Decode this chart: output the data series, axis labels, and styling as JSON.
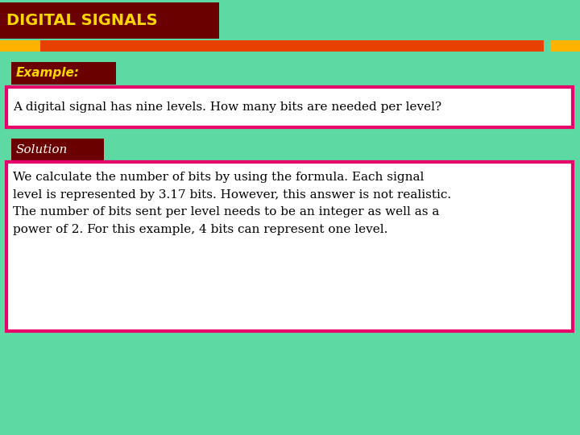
{
  "bg_color": "#5DD9A4",
  "title_text": "DIGITAL SIGNALS",
  "title_bg": "#6B0000",
  "title_text_color": "#FFD700",
  "stripe1_color": "#FFB300",
  "stripe2_color": "#E84000",
  "example_label": "Example:",
  "example_label_bg": "#6B0000",
  "example_label_color": "#FFD700",
  "example_text": "A digital signal has nine levels. How many bits are needed per level?",
  "example_box_border": "#E8006A",
  "solution_label": "Solution",
  "solution_label_bg": "#6B0000",
  "solution_label_color": "#FFFFFF",
  "solution_text": "We calculate the number of bits by using the formula. Each signal\nlevel is represented by 3.17 bits. However, this answer is not realistic.\nThe number of bits sent per level needs to be an integer as well as a\npower of 2. For this example, 4 bits can represent one level.",
  "solution_box_border": "#E8006A",
  "text_color": "#000000",
  "title_fontsize": 14,
  "example_label_fontsize": 11,
  "example_text_fontsize": 11,
  "solution_label_fontsize": 11,
  "solution_text_fontsize": 11
}
